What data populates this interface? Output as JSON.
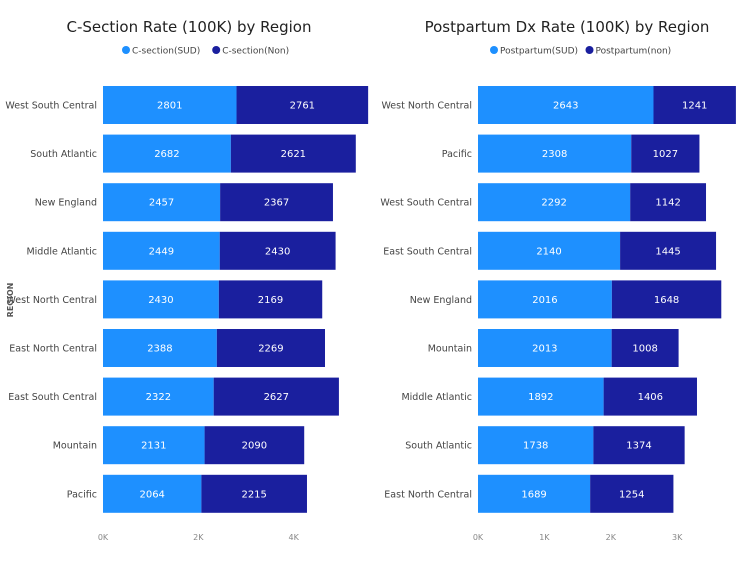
{
  "colors": {
    "series1": "#1E90FF",
    "series2": "#1A1F9E"
  },
  "axis_title": "REGION",
  "chart_data": [
    {
      "type": "bar",
      "orientation": "horizontal",
      "stacked": true,
      "title": "C-Section Rate (100K) by Region",
      "ylabel": "REGION",
      "categories": [
        "West South Central",
        "South Atlantic",
        "New England",
        "Middle Atlantic",
        "West North Central",
        "East North Central",
        "East South Central",
        "Mountain",
        "Pacific"
      ],
      "series": [
        {
          "name": "C-section(SUD)",
          "values": [
            2801,
            2682,
            2457,
            2449,
            2430,
            2388,
            2322,
            2131,
            2064
          ]
        },
        {
          "name": "C-section(Non)",
          "values": [
            2761,
            2621,
            2367,
            2430,
            2169,
            2269,
            2627,
            2090,
            2215
          ]
        }
      ],
      "xlim": [
        0,
        6000
      ],
      "x_ticks": [
        0,
        2000,
        4000
      ],
      "x_tick_labels": [
        "0K",
        "2K",
        "4K"
      ]
    },
    {
      "type": "bar",
      "orientation": "horizontal",
      "stacked": true,
      "title": "Postpartum Dx Rate (100K) by Region",
      "categories": [
        "West North Central",
        "Pacific",
        "West South Central",
        "East South Central",
        "New England",
        "Mountain",
        "Middle Atlantic",
        "South Atlantic",
        "East North Central"
      ],
      "series": [
        {
          "name": "Postpartum(SUD)",
          "values": [
            2643,
            2308,
            2292,
            2140,
            2016,
            2013,
            1892,
            1738,
            1689
          ]
        },
        {
          "name": "Postpartum(non)",
          "values": [
            1241,
            1027,
            1142,
            1445,
            1648,
            1008,
            1406,
            1374,
            1254
          ]
        }
      ],
      "xlim": [
        0,
        4000
      ],
      "x_ticks": [
        0,
        1000,
        2000,
        3000
      ],
      "x_tick_labels": [
        "0K",
        "1K",
        "2K",
        "3K"
      ]
    }
  ]
}
